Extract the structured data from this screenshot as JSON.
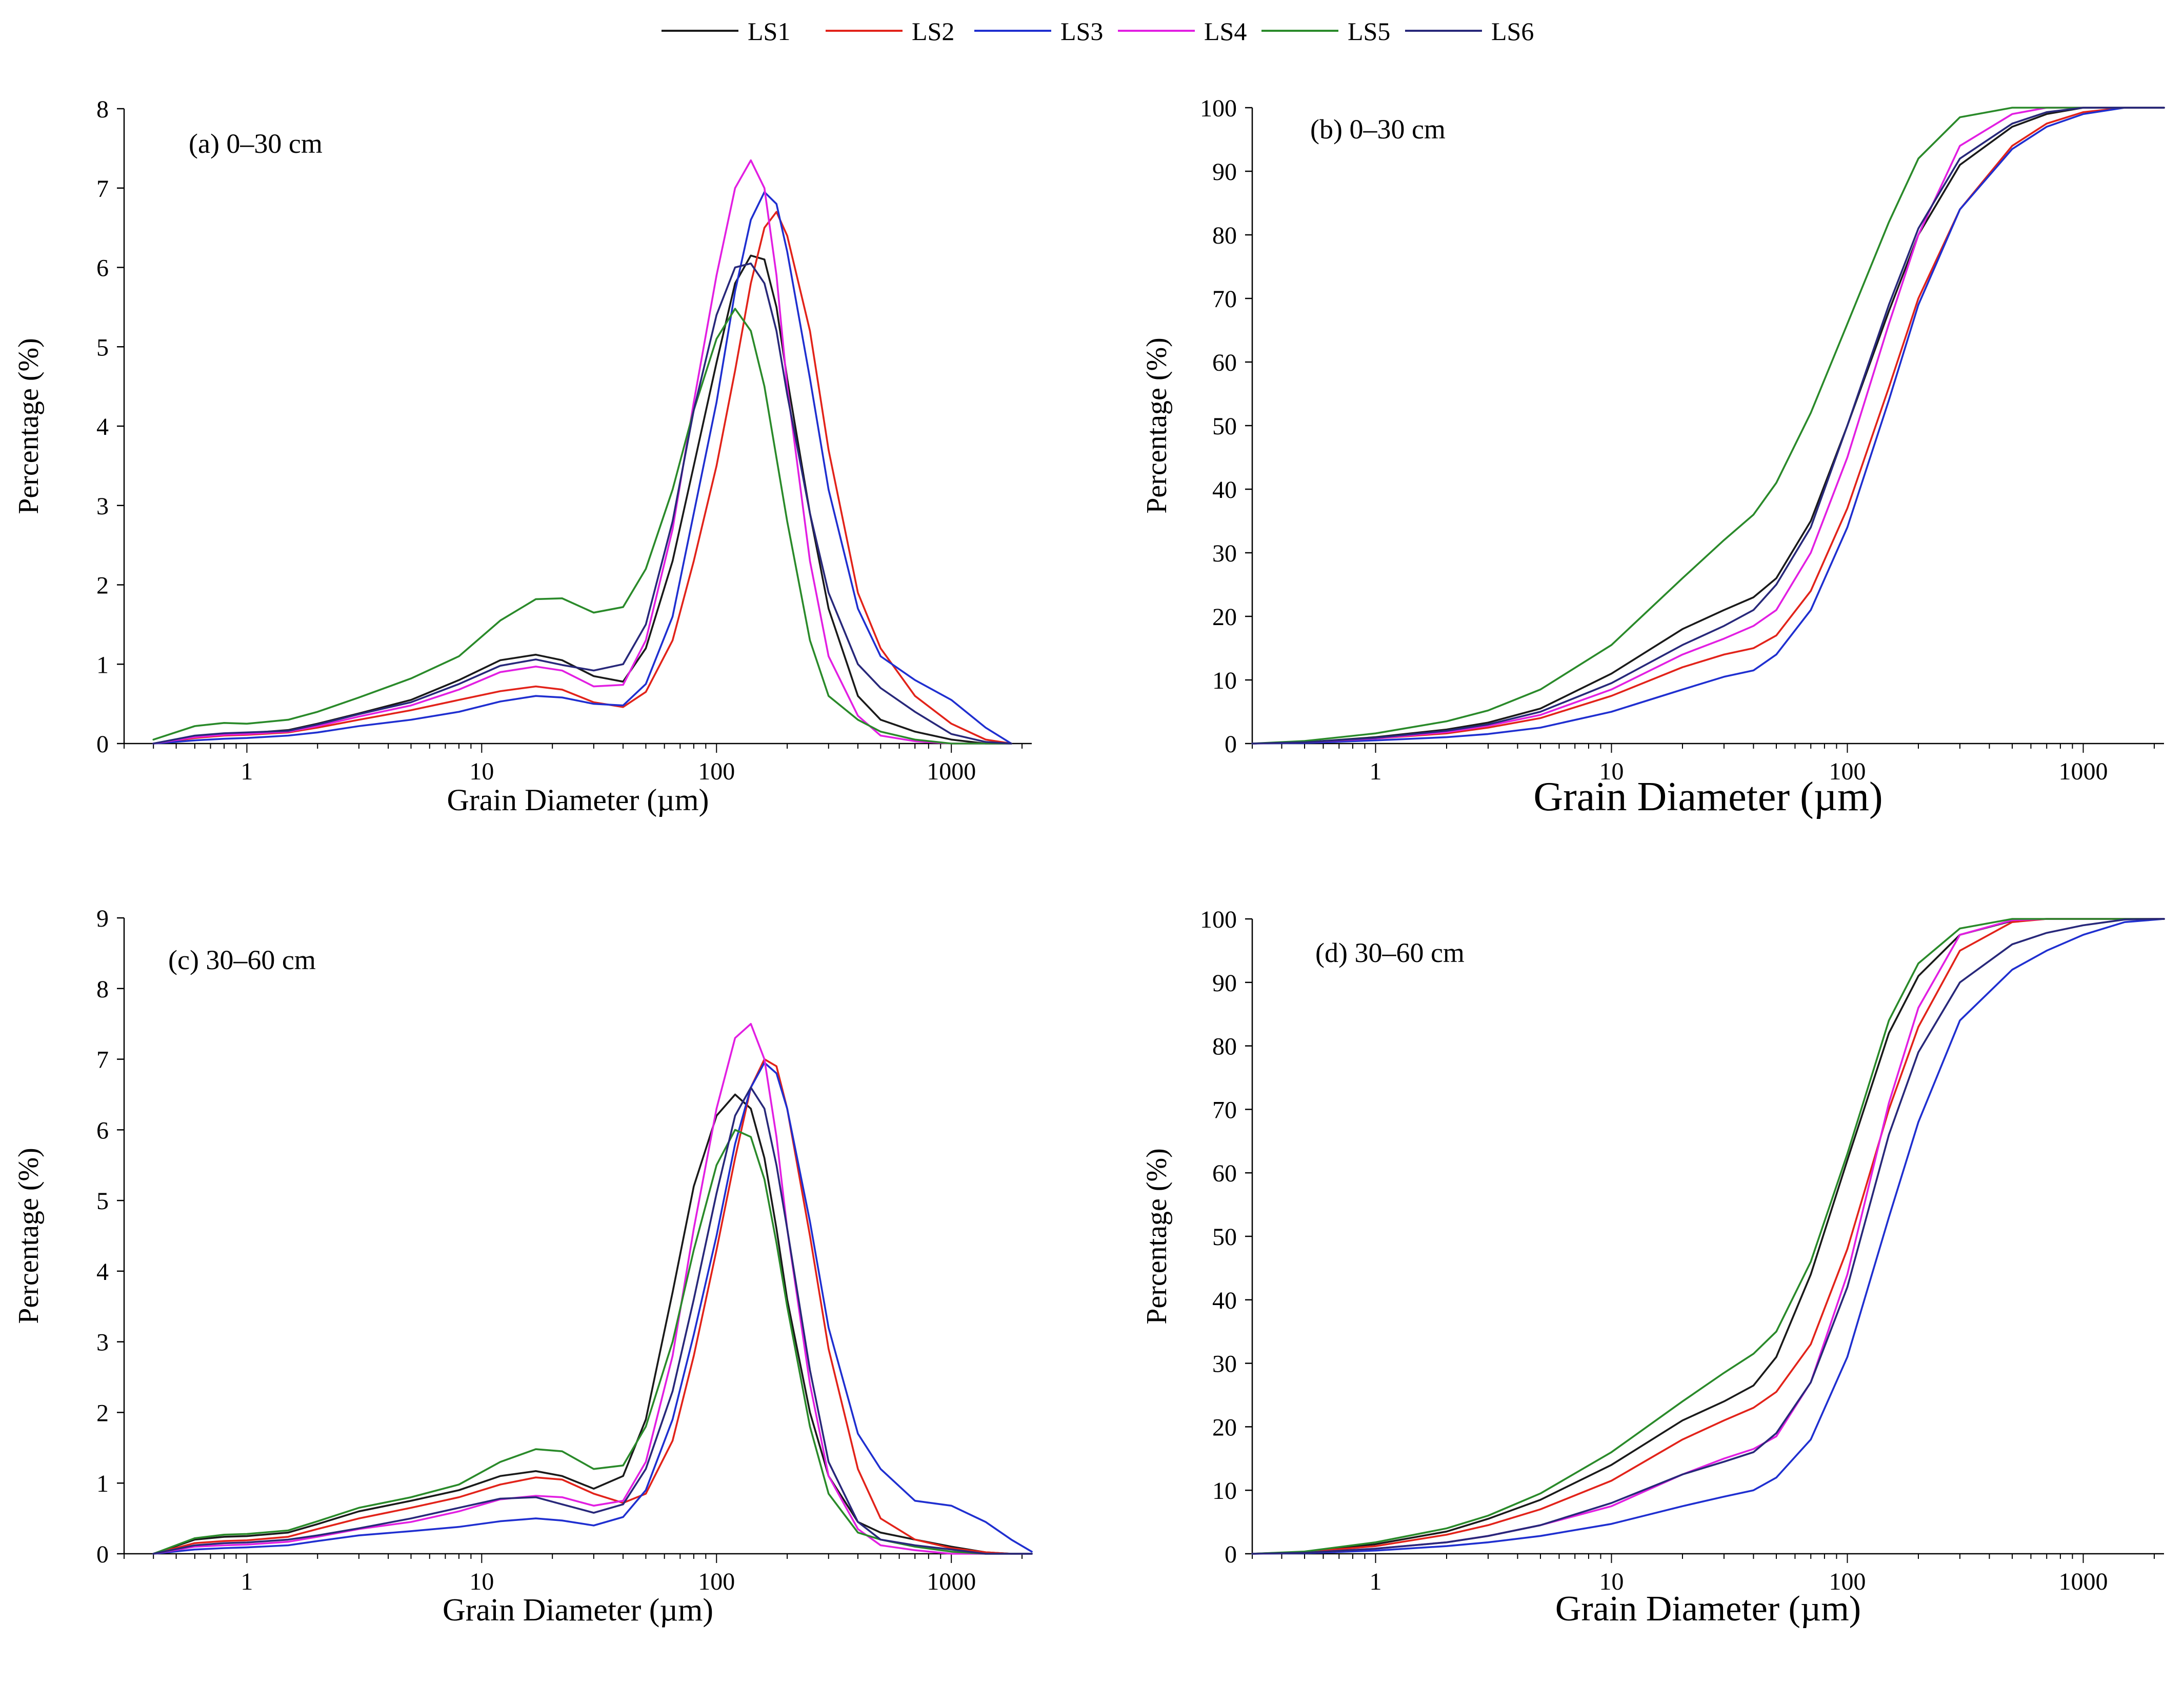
{
  "legend": [
    {
      "name": "LS1",
      "color": "#1a1a1a"
    },
    {
      "name": "LS2",
      "color": "#e2231a"
    },
    {
      "name": "LS3",
      "color": "#1f2fd0"
    },
    {
      "name": "LS4",
      "color": "#e21fe2"
    },
    {
      "name": "LS5",
      "color": "#2a8a2a"
    },
    {
      "name": "LS6",
      "color": "#28287a"
    }
  ],
  "chart_data": [
    {
      "id": "a",
      "type": "line",
      "title": "(a) 0–30 cm",
      "xlabel": "Grain Diameter (µm)",
      "ylabel": "Percentage (%)",
      "xscale": "log",
      "xlim": [
        0.3,
        2200
      ],
      "ylim": [
        0,
        8
      ],
      "xticks": [
        1,
        10,
        100,
        1000
      ],
      "xtick_labels": [
        "1",
        "10",
        "100",
        "1000"
      ],
      "yticks": [
        0,
        1,
        2,
        3,
        4,
        5,
        6,
        7,
        8
      ],
      "ytick_labels": [
        "0",
        "1",
        "2",
        "3",
        "4",
        "5",
        "6",
        "7",
        "8"
      ],
      "x": [
        0.4,
        0.6,
        0.8,
        1,
        1.5,
        2,
        3,
        5,
        8,
        12,
        17,
        22,
        30,
        40,
        50,
        65,
        80,
        100,
        120,
        140,
        160,
        180,
        200,
        250,
        300,
        400,
        500,
        700,
        1000,
        1400,
        1800
      ],
      "series": [
        {
          "name": "LS1",
          "values": [
            0,
            0.09,
            0.12,
            0.13,
            0.17,
            0.25,
            0.38,
            0.55,
            0.8,
            1.05,
            1.12,
            1.05,
            0.85,
            0.78,
            1.2,
            2.3,
            3.5,
            4.8,
            5.8,
            6.15,
            6.1,
            5.5,
            4.6,
            2.9,
            1.7,
            0.6,
            0.3,
            0.15,
            0.05,
            0,
            0
          ]
        },
        {
          "name": "LS2",
          "values": [
            0,
            0.07,
            0.1,
            0.11,
            0.14,
            0.2,
            0.3,
            0.42,
            0.55,
            0.66,
            0.72,
            0.68,
            0.52,
            0.46,
            0.65,
            1.3,
            2.3,
            3.5,
            4.7,
            5.8,
            6.5,
            6.7,
            6.4,
            5.2,
            3.7,
            1.9,
            1.2,
            0.6,
            0.25,
            0.05,
            0
          ]
        },
        {
          "name": "LS3",
          "values": [
            0,
            0.04,
            0.06,
            0.07,
            0.1,
            0.14,
            0.22,
            0.3,
            0.4,
            0.53,
            0.6,
            0.58,
            0.5,
            0.48,
            0.75,
            1.6,
            2.9,
            4.3,
            5.7,
            6.6,
            6.95,
            6.8,
            6.2,
            4.6,
            3.2,
            1.7,
            1.1,
            0.8,
            0.55,
            0.2,
            0
          ]
        },
        {
          "name": "LS4",
          "values": [
            0,
            0.08,
            0.11,
            0.12,
            0.15,
            0.22,
            0.34,
            0.48,
            0.68,
            0.9,
            0.97,
            0.92,
            0.72,
            0.74,
            1.3,
            2.7,
            4.3,
            5.9,
            7.0,
            7.35,
            7.0,
            5.9,
            4.5,
            2.3,
            1.1,
            0.35,
            0.1,
            0.03,
            0,
            0,
            0
          ]
        },
        {
          "name": "LS5",
          "values": [
            0.05,
            0.22,
            0.26,
            0.25,
            0.3,
            0.4,
            0.58,
            0.82,
            1.1,
            1.55,
            1.82,
            1.83,
            1.65,
            1.72,
            2.2,
            3.2,
            4.2,
            5.1,
            5.48,
            5.2,
            4.5,
            3.6,
            2.8,
            1.3,
            0.6,
            0.3,
            0.15,
            0.05,
            0,
            0,
            0
          ]
        },
        {
          "name": "LS6",
          "values": [
            0,
            0.1,
            0.13,
            0.14,
            0.16,
            0.24,
            0.37,
            0.52,
            0.75,
            0.98,
            1.06,
            0.99,
            0.92,
            1.0,
            1.5,
            2.8,
            4.2,
            5.4,
            6.0,
            6.05,
            5.8,
            5.2,
            4.4,
            2.9,
            1.9,
            1.0,
            0.7,
            0.4,
            0.12,
            0.02,
            0
          ]
        }
      ]
    },
    {
      "id": "b",
      "type": "line",
      "title": "(b) 0–30 cm",
      "xlabel": "Grain Diameter (µm)",
      "ylabel": "Percentage (%)",
      "xscale": "log",
      "xlim": [
        0.3,
        2200
      ],
      "ylim": [
        0,
        100
      ],
      "xticks": [
        1,
        10,
        100,
        1000
      ],
      "xtick_labels": [
        "1",
        "10",
        "100",
        "1000"
      ],
      "yticks": [
        0,
        10,
        20,
        30,
        40,
        50,
        60,
        70,
        80,
        90,
        100
      ],
      "ytick_labels": [
        "0",
        "10",
        "20",
        "30",
        "40",
        "50",
        "60",
        "70",
        "80",
        "90",
        "100"
      ],
      "x": [
        0.3,
        0.5,
        1,
        2,
        3,
        5,
        10,
        20,
        30,
        40,
        50,
        70,
        100,
        150,
        200,
        300,
        500,
        700,
        1000,
        1500,
        2200
      ],
      "series": [
        {
          "name": "LS1",
          "values": [
            0,
            0.2,
            1,
            2.2,
            3.3,
            5.5,
            11,
            18,
            21,
            23,
            26,
            35,
            50,
            68,
            80,
            91,
            97,
            99,
            100,
            100,
            100
          ]
        },
        {
          "name": "LS2",
          "values": [
            0,
            0.2,
            0.8,
            1.6,
            2.5,
            4,
            7.5,
            12,
            14,
            15,
            17,
            24,
            37,
            56,
            70,
            84,
            94,
            97.5,
            99.3,
            100,
            100
          ]
        },
        {
          "name": "LS3",
          "values": [
            0,
            0.1,
            0.5,
            1,
            1.5,
            2.5,
            5,
            8.5,
            10.5,
            11.5,
            14,
            21,
            34,
            54,
            69,
            84,
            93.5,
            97,
            99,
            100,
            100
          ]
        },
        {
          "name": "LS4",
          "values": [
            0,
            0.2,
            0.8,
            1.8,
            2.8,
            4.5,
            8.5,
            14,
            16.5,
            18.5,
            21,
            30,
            45,
            66,
            80,
            94,
            99,
            100,
            100,
            100,
            100
          ]
        },
        {
          "name": "LS5",
          "values": [
            0,
            0.4,
            1.6,
            3.5,
            5.2,
            8.5,
            15.5,
            26,
            32,
            36,
            41,
            52,
            66,
            82,
            92,
            98.5,
            100,
            100,
            100,
            100,
            100
          ]
        },
        {
          "name": "LS6",
          "values": [
            0,
            0.2,
            0.9,
            2,
            3,
            5,
            9.5,
            15.5,
            18.5,
            21,
            25,
            34,
            50,
            69,
            81,
            92,
            97.5,
            99.3,
            100,
            100,
            100
          ]
        }
      ]
    },
    {
      "id": "c",
      "type": "line",
      "title": "(c) 30–60 cm",
      "xlabel": "Grain Diameter (µm)",
      "ylabel": "Percentage (%)",
      "xscale": "log",
      "xlim": [
        0.3,
        2200
      ],
      "ylim": [
        0,
        9
      ],
      "xticks": [
        1,
        10,
        100,
        1000
      ],
      "xtick_labels": [
        "1",
        "10",
        "100",
        "1000"
      ],
      "yticks": [
        0,
        1,
        2,
        3,
        4,
        5,
        6,
        7,
        8,
        9
      ],
      "ytick_labels": [
        "0",
        "1",
        "2",
        "3",
        "4",
        "5",
        "6",
        "7",
        "8",
        "9"
      ],
      "x": [
        0.4,
        0.6,
        0.8,
        1,
        1.5,
        2,
        3,
        5,
        8,
        12,
        17,
        22,
        30,
        40,
        50,
        65,
        80,
        100,
        120,
        140,
        160,
        180,
        200,
        250,
        300,
        400,
        500,
        700,
        1000,
        1400,
        1800,
        2200
      ],
      "series": [
        {
          "name": "LS1",
          "values": [
            0,
            0.2,
            0.24,
            0.25,
            0.3,
            0.42,
            0.6,
            0.75,
            0.9,
            1.1,
            1.17,
            1.1,
            0.92,
            1.1,
            1.9,
            3.7,
            5.2,
            6.2,
            6.5,
            6.3,
            5.6,
            4.6,
            3.6,
            2.0,
            1.1,
            0.45,
            0.3,
            0.2,
            0.1,
            0.02,
            0,
            0
          ]
        },
        {
          "name": "LS2",
          "values": [
            0,
            0.15,
            0.18,
            0.19,
            0.24,
            0.35,
            0.5,
            0.65,
            0.8,
            0.98,
            1.08,
            1.05,
            0.85,
            0.72,
            0.85,
            1.6,
            2.8,
            4.3,
            5.6,
            6.6,
            7.0,
            6.9,
            6.3,
            4.5,
            2.9,
            1.2,
            0.5,
            0.2,
            0.08,
            0.02,
            0,
            0
          ]
        },
        {
          "name": "LS3",
          "values": [
            0,
            0.06,
            0.08,
            0.09,
            0.12,
            0.18,
            0.26,
            0.32,
            0.38,
            0.46,
            0.5,
            0.47,
            0.4,
            0.52,
            0.9,
            1.9,
            3.1,
            4.5,
            5.8,
            6.6,
            6.95,
            6.8,
            6.3,
            4.7,
            3.2,
            1.7,
            1.2,
            0.75,
            0.68,
            0.45,
            0.2,
            0.03
          ]
        },
        {
          "name": "LS4",
          "values": [
            0,
            0.1,
            0.12,
            0.13,
            0.17,
            0.24,
            0.35,
            0.45,
            0.6,
            0.77,
            0.82,
            0.8,
            0.68,
            0.75,
            1.3,
            2.8,
            4.6,
            6.3,
            7.3,
            7.5,
            7.0,
            5.9,
            4.6,
            2.4,
            1.1,
            0.35,
            0.12,
            0.05,
            0,
            0,
            0,
            0
          ]
        },
        {
          "name": "LS5",
          "values": [
            0,
            0.22,
            0.27,
            0.28,
            0.33,
            0.46,
            0.65,
            0.8,
            0.98,
            1.3,
            1.48,
            1.45,
            1.2,
            1.25,
            1.8,
            3.0,
            4.3,
            5.5,
            6.0,
            5.9,
            5.3,
            4.4,
            3.5,
            1.8,
            0.85,
            0.3,
            0.2,
            0.1,
            0.03,
            0,
            0,
            0
          ]
        },
        {
          "name": "LS6",
          "values": [
            0,
            0.12,
            0.15,
            0.16,
            0.2,
            0.26,
            0.36,
            0.5,
            0.65,
            0.78,
            0.8,
            0.7,
            0.58,
            0.7,
            1.2,
            2.3,
            3.6,
            5.1,
            6.2,
            6.6,
            6.3,
            5.5,
            4.6,
            2.6,
            1.3,
            0.45,
            0.2,
            0.12,
            0.06,
            0,
            0,
            0
          ]
        }
      ]
    },
    {
      "id": "d",
      "type": "line",
      "title": "(d) 30–60 cm",
      "xlabel": "Grain Diameter (µm)",
      "ylabel": "Percentage (%)",
      "xscale": "log",
      "xlim": [
        0.3,
        2200
      ],
      "ylim": [
        0,
        100
      ],
      "xticks": [
        1,
        10,
        100,
        1000
      ],
      "xtick_labels": [
        "1",
        "10",
        "100",
        "1000"
      ],
      "yticks": [
        0,
        10,
        20,
        30,
        40,
        50,
        60,
        70,
        80,
        90,
        100
      ],
      "ytick_labels": [
        "0",
        "10",
        "20",
        "30",
        "40",
        "50",
        "60",
        "70",
        "80",
        "90",
        "100"
      ],
      "x": [
        0.3,
        0.5,
        1,
        2,
        3,
        5,
        10,
        20,
        30,
        40,
        50,
        70,
        100,
        150,
        200,
        300,
        500,
        700,
        1000,
        1500,
        2200
      ],
      "series": [
        {
          "name": "LS1",
          "values": [
            0,
            0.3,
            1.5,
            3.5,
            5.5,
            8.5,
            14,
            21,
            24,
            26.5,
            31,
            44,
            62,
            82,
            91,
            97.5,
            99.7,
            100,
            100,
            100,
            100
          ]
        },
        {
          "name": "LS2",
          "values": [
            0,
            0.25,
            1.2,
            3,
            4.5,
            7,
            11.5,
            18,
            21,
            23,
            25.5,
            33,
            48,
            70,
            83,
            95,
            99.5,
            100,
            100,
            100,
            100
          ]
        },
        {
          "name": "LS3",
          "values": [
            0,
            0.1,
            0.5,
            1.2,
            1.8,
            2.8,
            4.7,
            7.5,
            9,
            10,
            12,
            18,
            31,
            53,
            68,
            84,
            92,
            95,
            97.5,
            99.5,
            100
          ]
        },
        {
          "name": "LS4",
          "values": [
            0,
            0.15,
            0.8,
            1.8,
            2.8,
            4.5,
            7.5,
            12.5,
            15,
            16.5,
            18.5,
            27,
            44,
            71,
            86,
            97.5,
            99.8,
            100,
            100,
            100,
            100
          ]
        },
        {
          "name": "LS5",
          "values": [
            0,
            0.35,
            1.8,
            4,
            6,
            9.5,
            16,
            24,
            28.5,
            31.5,
            35,
            46,
            63,
            84,
            93,
            98.5,
            100,
            100,
            100,
            100,
            100
          ]
        },
        {
          "name": "LS6",
          "values": [
            0,
            0.15,
            0.8,
            1.8,
            2.8,
            4.5,
            8,
            12.5,
            14.5,
            16,
            19,
            27,
            42,
            66,
            79,
            90,
            96,
            97.8,
            99,
            99.9,
            100
          ]
        }
      ]
    }
  ]
}
